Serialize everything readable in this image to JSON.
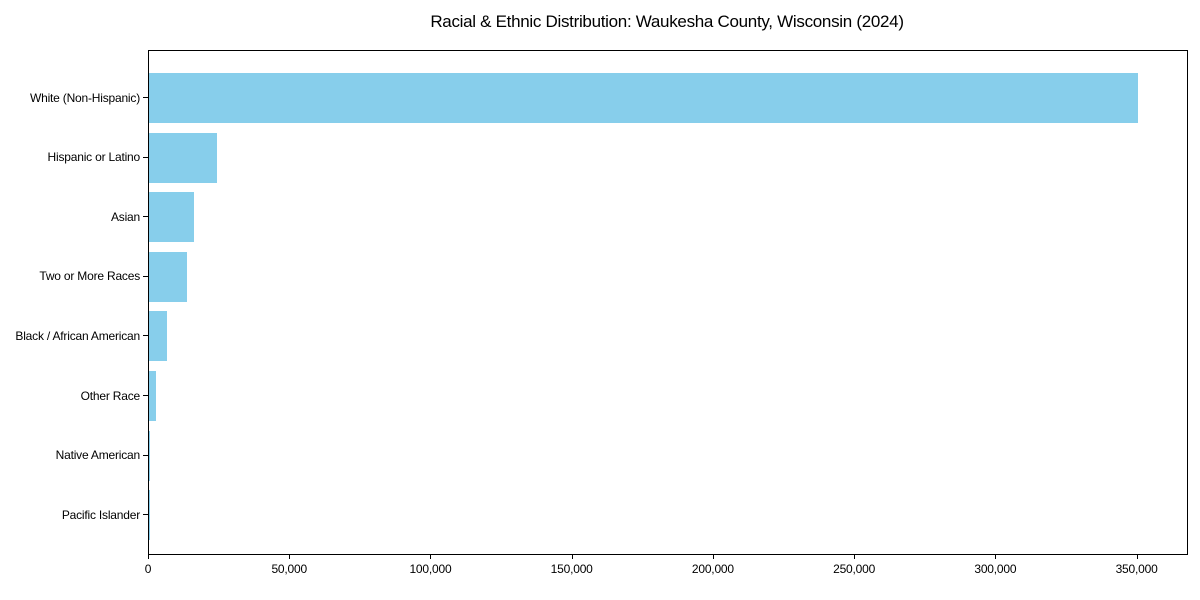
{
  "chart_data": {
    "type": "bar",
    "orientation": "horizontal",
    "title": "Racial & Ethnic Distribution: Waukesha County, Wisconsin (2024)",
    "categories": [
      "White (Non-Hispanic)",
      "Hispanic or Latino",
      "Asian",
      "Two or More Races",
      "Black / African American",
      "Other Race",
      "Native American",
      "Pacific Islander"
    ],
    "values": [
      350000,
      24000,
      16000,
      13500,
      6300,
      2400,
      500,
      150
    ],
    "xlabel": "",
    "ylabel": "",
    "xlim": [
      0,
      367500
    ],
    "x_ticks": [
      0,
      50000,
      100000,
      150000,
      200000,
      250000,
      300000,
      350000
    ],
    "x_tick_labels": [
      "0",
      "50,000",
      "100,000",
      "150,000",
      "200,000",
      "250,000",
      "300,000",
      "350,000"
    ],
    "bar_color": "#87CEEB",
    "axis_color": "#000000",
    "text_color": "#000000",
    "background_color": "#ffffff",
    "grid": false,
    "legend": null
  }
}
